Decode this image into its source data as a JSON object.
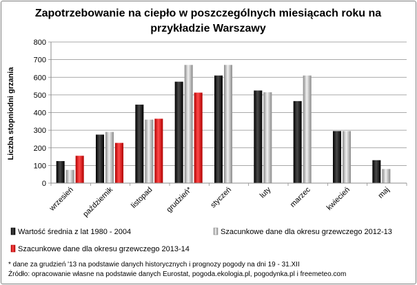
{
  "chart_data": {
    "type": "bar",
    "title_line1": "Zapotrzebowanie na ciepło w poszczególnych miesiącach roku na",
    "title_line2": "przykładzie Warszawy",
    "ylabel": "Liczba stopniodni grzania",
    "ylim": [
      0,
      800
    ],
    "yticks": [
      0,
      100,
      200,
      300,
      400,
      500,
      600,
      700,
      800
    ],
    "grid": true,
    "categories": [
      "wrzesień",
      "październik",
      "listopad",
      "grudzień*",
      "styczeń",
      "luty",
      "marzec",
      "kwiecień",
      "maj"
    ],
    "series": [
      {
        "name": "Wartość średnia z lat 1980 - 2004",
        "color": "#000000",
        "values": [
          125,
          275,
          445,
          575,
          610,
          525,
          465,
          295,
          130
        ]
      },
      {
        "name": "Szacunkowe dane dla okresu grzewczego 2012-13",
        "color": "#c8c8c8",
        "values": [
          75,
          290,
          360,
          670,
          670,
          515,
          610,
          295,
          80
        ]
      },
      {
        "name": "Szacunkowe dane dla okresu grzewczego 2013-14",
        "color": "#ff0000",
        "values": [
          155,
          228,
          365,
          513,
          null,
          null,
          null,
          null,
          null
        ]
      }
    ],
    "legend_position": "bottom"
  },
  "notes": {
    "footnote": "* dane za grudzień '13 na podstawie danych historycznych i prognozy pogody na dni  19 - 31.XII",
    "source": "Źródło: opracowanie własne na podstawie danych Eurostat, pogoda.ekologia.pl, pogodynka.pl i freemeteo.com"
  }
}
